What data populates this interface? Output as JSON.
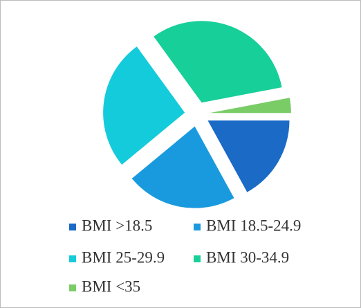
{
  "chart_data": {
    "type": "pie",
    "categories": [
      "BMI >18.5",
      "BMI 18.5-24.9",
      "BMI 25-29.9",
      "BMI 30-34.9",
      "BMI <35"
    ],
    "values": [
      17,
      22,
      26,
      32,
      3
    ],
    "colors": [
      "#1a6ac6",
      "#1a9ade",
      "#14cbdb",
      "#17cf99",
      "#79cc66"
    ],
    "legend": "bottom"
  }
}
